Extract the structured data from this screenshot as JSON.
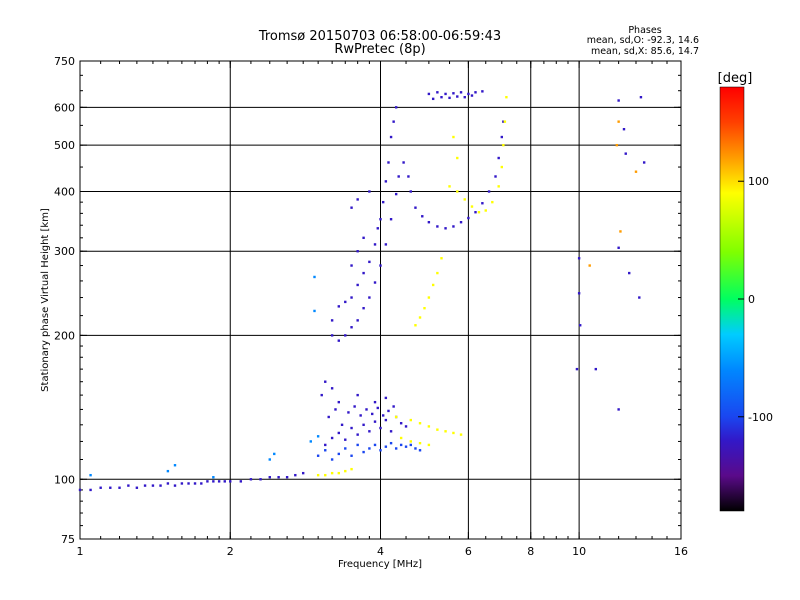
{
  "header": {
    "title_line1": "Tromsø 20150703 06:58:00-06:59:43",
    "title_line2": "RwPretec (8p)"
  },
  "phases": {
    "heading": "Phases",
    "o_line": "mean, sd,O: -92.3, 14.6",
    "x_line": "mean, sd,X:  85.6, 14.7"
  },
  "colorbar": {
    "label": "[deg]",
    "range": [
      -180,
      180
    ],
    "tick_values": [
      100,
      0,
      -100
    ],
    "tick_labels": [
      "100",
      "0",
      "-100"
    ],
    "colors": {
      "-180": "#000000",
      "-150": "#5a0a8a",
      "-120": "#3218c8",
      "-100": "#1a46f0",
      "-60": "#0088ff",
      "-30": "#00ccff",
      "0": "#00ff60",
      "40": "#80ff00",
      "90": "#ffff00",
      "120": "#ff9c00",
      "150": "#ff4000",
      "180": "#ff0000"
    }
  },
  "chart_data": {
    "type": "scatter",
    "xlabel": "Frequency [MHz]",
    "ylabel": "Stationary phase Virtual Height [km]",
    "xscale": "log",
    "yscale": "log",
    "xlim": [
      1,
      16
    ],
    "ylim": [
      75,
      750
    ],
    "x_ticks": [
      1,
      2,
      4,
      6,
      8,
      10,
      16
    ],
    "x_tick_labels": [
      "1",
      "2",
      "4",
      "6",
      "8",
      "10",
      "16"
    ],
    "y_ticks": [
      75,
      100,
      200,
      300,
      400,
      500,
      600,
      750
    ],
    "y_tick_labels": [
      "75",
      "100",
      "200",
      "300",
      "400",
      "500",
      "600",
      "750"
    ],
    "grid_x": [
      2,
      4,
      6,
      8,
      10
    ],
    "grid_y": [
      100,
      200,
      300,
      400,
      500,
      600
    ],
    "color_by": "phase [deg]",
    "point_groups": [
      {
        "points": [
          [
            1.0,
            95
          ],
          [
            1.05,
            95
          ],
          [
            1.1,
            96
          ],
          [
            1.15,
            96
          ],
          [
            1.2,
            96
          ],
          [
            1.25,
            97
          ],
          [
            1.3,
            96
          ],
          [
            1.35,
            97
          ],
          [
            1.4,
            97
          ],
          [
            1.45,
            97
          ],
          [
            1.5,
            98
          ],
          [
            1.55,
            97
          ],
          [
            1.6,
            98
          ],
          [
            1.65,
            98
          ],
          [
            1.7,
            98
          ],
          [
            1.75,
            98
          ],
          [
            1.8,
            99
          ],
          [
            1.85,
            99
          ],
          [
            1.9,
            99
          ],
          [
            1.95,
            99
          ],
          [
            2.0,
            99
          ],
          [
            2.1,
            99
          ],
          [
            2.2,
            100
          ],
          [
            2.3,
            100
          ],
          [
            2.4,
            101
          ],
          [
            2.5,
            101
          ],
          [
            2.6,
            101
          ],
          [
            2.7,
            102
          ],
          [
            2.8,
            103
          ]
        ],
        "phase": -110
      },
      {
        "points": [
          [
            1.05,
            102
          ],
          [
            1.5,
            104
          ],
          [
            1.55,
            107
          ],
          [
            1.85,
            101
          ],
          [
            2.4,
            110
          ],
          [
            2.45,
            113
          ],
          [
            2.9,
            120
          ],
          [
            3.0,
            123
          ],
          [
            2.95,
            225
          ],
          [
            2.95,
            265
          ]
        ],
        "phase": -60
      },
      {
        "points": [
          [
            3.1,
            118
          ],
          [
            3.2,
            122
          ],
          [
            3.3,
            125
          ],
          [
            3.4,
            121
          ],
          [
            3.5,
            128
          ],
          [
            3.6,
            124
          ],
          [
            3.7,
            130
          ],
          [
            3.8,
            126
          ],
          [
            3.9,
            132
          ],
          [
            4.0,
            128
          ],
          [
            4.1,
            133
          ],
          [
            4.2,
            126
          ],
          [
            4.3,
            135
          ],
          [
            4.4,
            131
          ],
          [
            4.5,
            129
          ],
          [
            3.15,
            135
          ],
          [
            3.25,
            140
          ],
          [
            3.35,
            130
          ],
          [
            3.45,
            138
          ],
          [
            3.55,
            142
          ],
          [
            3.65,
            136
          ],
          [
            3.75,
            140
          ],
          [
            3.85,
            137
          ],
          [
            3.95,
            141
          ],
          [
            4.05,
            136
          ],
          [
            4.15,
            139
          ],
          [
            4.25,
            142
          ],
          [
            3.05,
            150
          ],
          [
            3.1,
            160
          ],
          [
            3.2,
            155
          ],
          [
            3.3,
            145
          ],
          [
            3.6,
            150
          ],
          [
            3.9,
            145
          ],
          [
            4.1,
            148
          ]
        ],
        "phase": -120
      },
      {
        "points": [
          [
            3.0,
            112
          ],
          [
            3.1,
            115
          ],
          [
            3.2,
            110
          ],
          [
            3.3,
            113
          ],
          [
            3.4,
            116
          ],
          [
            3.5,
            112
          ],
          [
            3.6,
            118
          ],
          [
            3.7,
            114
          ],
          [
            3.8,
            116
          ],
          [
            3.9,
            118
          ],
          [
            4.0,
            115
          ],
          [
            4.1,
            117
          ],
          [
            4.2,
            119
          ],
          [
            4.3,
            116
          ],
          [
            4.4,
            118
          ],
          [
            4.5,
            117
          ],
          [
            4.6,
            118
          ],
          [
            4.7,
            116
          ],
          [
            4.8,
            115
          ]
        ],
        "phase": -105
      },
      {
        "points": [
          [
            4.3,
            135
          ],
          [
            4.6,
            133
          ],
          [
            4.8,
            131
          ],
          [
            5.0,
            129
          ],
          [
            5.2,
            127
          ],
          [
            5.4,
            126
          ],
          [
            5.6,
            125
          ],
          [
            5.8,
            124
          ],
          [
            4.4,
            122
          ],
          [
            4.6,
            120
          ],
          [
            4.8,
            119
          ],
          [
            5.0,
            118
          ],
          [
            3.0,
            102
          ],
          [
            3.1,
            102
          ],
          [
            3.2,
            103
          ],
          [
            3.3,
            103
          ],
          [
            3.4,
            104
          ],
          [
            3.5,
            105
          ]
        ],
        "phase": 90
      },
      {
        "points": [
          [
            3.3,
            195
          ],
          [
            3.4,
            200
          ],
          [
            3.5,
            208
          ],
          [
            3.6,
            215
          ],
          [
            3.7,
            228
          ],
          [
            3.8,
            240
          ],
          [
            3.9,
            258
          ],
          [
            4.0,
            280
          ],
          [
            4.1,
            310
          ],
          [
            4.2,
            350
          ],
          [
            4.3,
            395
          ],
          [
            4.35,
            430
          ],
          [
            4.45,
            460
          ],
          [
            4.55,
            430
          ],
          [
            4.6,
            400
          ],
          [
            4.7,
            370
          ],
          [
            4.85,
            355
          ],
          [
            5.0,
            345
          ],
          [
            5.2,
            338
          ],
          [
            5.4,
            335
          ],
          [
            5.6,
            338
          ],
          [
            5.8,
            345
          ],
          [
            6.0,
            352
          ],
          [
            6.2,
            362
          ],
          [
            6.4,
            378
          ],
          [
            6.6,
            400
          ],
          [
            6.8,
            430
          ],
          [
            6.9,
            470
          ],
          [
            7.0,
            520
          ],
          [
            7.05,
            560
          ]
        ],
        "phase": -110
      },
      {
        "points": [
          [
            3.2,
            200
          ],
          [
            3.2,
            215
          ],
          [
            3.3,
            230
          ],
          [
            3.4,
            235
          ],
          [
            3.5,
            240
          ],
          [
            3.6,
            255
          ],
          [
            3.7,
            270
          ],
          [
            3.8,
            285
          ],
          [
            3.9,
            310
          ],
          [
            3.95,
            335
          ],
          [
            4.0,
            350
          ],
          [
            4.05,
            380
          ],
          [
            4.1,
            420
          ],
          [
            4.15,
            460
          ],
          [
            4.2,
            520
          ],
          [
            4.25,
            560
          ],
          [
            4.3,
            600
          ],
          [
            3.5,
            280
          ],
          [
            3.6,
            300
          ],
          [
            3.7,
            320
          ],
          [
            3.5,
            370
          ],
          [
            3.6,
            385
          ],
          [
            3.8,
            400
          ]
        ],
        "phase": -115
      },
      {
        "points": [
          [
            5.0,
            640
          ],
          [
            5.2,
            645
          ],
          [
            5.4,
            640
          ],
          [
            5.6,
            642
          ],
          [
            5.8,
            645
          ],
          [
            6.0,
            640
          ],
          [
            6.2,
            645
          ],
          [
            6.4,
            648
          ],
          [
            5.1,
            625
          ],
          [
            5.3,
            630
          ],
          [
            5.5,
            628
          ],
          [
            5.7,
            632
          ],
          [
            5.9,
            630
          ],
          [
            6.1,
            635
          ]
        ],
        "phase": -110
      },
      {
        "points": [
          [
            4.7,
            210
          ],
          [
            4.8,
            218
          ],
          [
            4.9,
            228
          ],
          [
            5.0,
            240
          ],
          [
            5.1,
            255
          ],
          [
            5.2,
            270
          ],
          [
            5.3,
            290
          ],
          [
            5.5,
            410
          ],
          [
            5.7,
            400
          ],
          [
            5.9,
            385
          ],
          [
            6.1,
            372
          ],
          [
            6.3,
            362
          ],
          [
            6.5,
            365
          ],
          [
            6.7,
            380
          ],
          [
            6.9,
            410
          ],
          [
            7.0,
            450
          ],
          [
            7.05,
            500
          ],
          [
            7.1,
            560
          ],
          [
            7.15,
            630
          ],
          [
            5.7,
            470
          ],
          [
            5.6,
            520
          ]
        ],
        "phase": 90
      },
      {
        "points": [
          [
            10.0,
            245
          ],
          [
            10.0,
            290
          ],
          [
            9.9,
            170
          ],
          [
            10.05,
            210
          ],
          [
            12.0,
            140
          ],
          [
            12.0,
            305
          ],
          [
            12.0,
            620
          ],
          [
            12.6,
            270
          ],
          [
            13.2,
            240
          ],
          [
            13.3,
            630
          ],
          [
            13.5,
            460
          ],
          [
            10.8,
            170
          ],
          [
            12.4,
            480
          ],
          [
            12.3,
            540
          ]
        ],
        "phase": -110
      },
      {
        "points": [
          [
            12.0,
            560
          ],
          [
            11.9,
            500
          ],
          [
            12.1,
            330
          ],
          [
            13.0,
            440
          ],
          [
            10.5,
            280
          ]
        ],
        "phase": 130
      }
    ]
  }
}
